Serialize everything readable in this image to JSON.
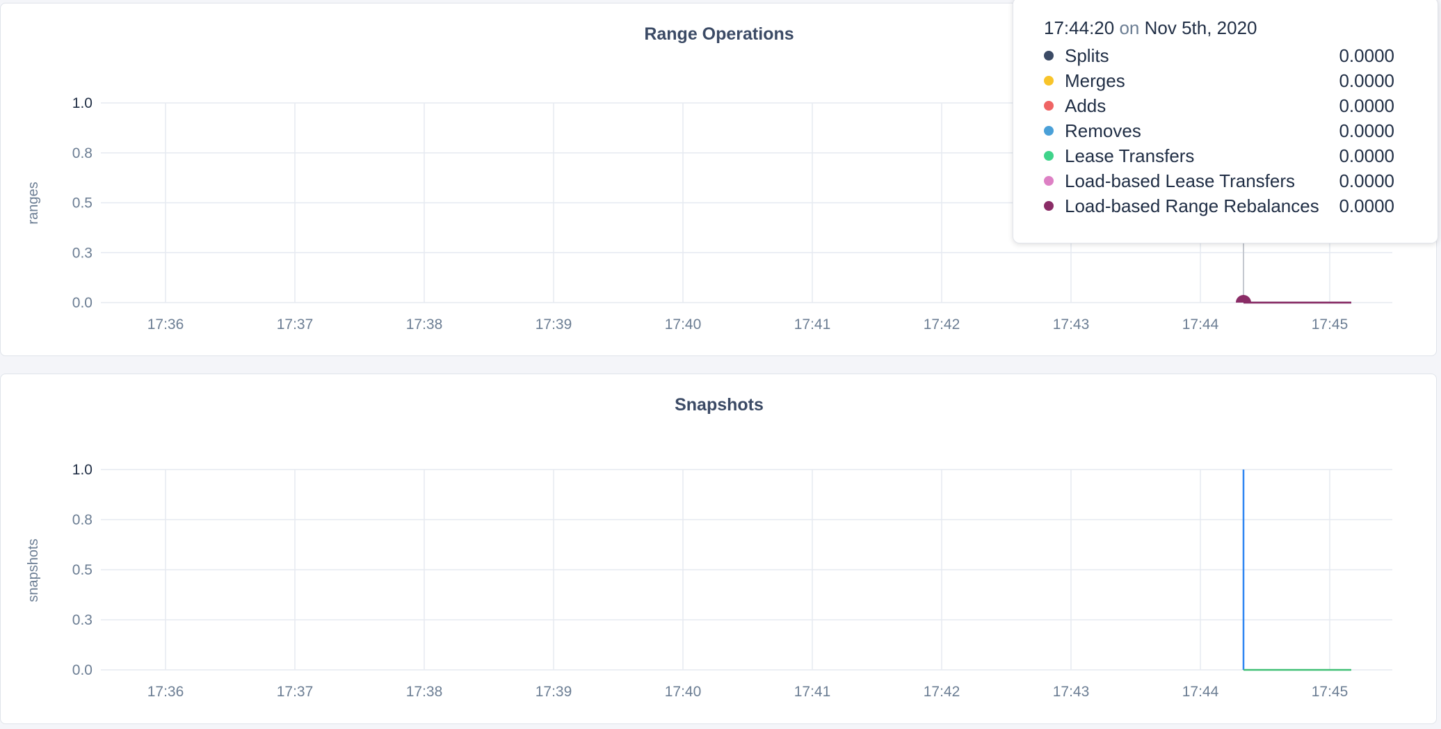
{
  "chart_data": [
    {
      "type": "line",
      "title": "Range Operations",
      "ylabel": "ranges",
      "xlabel": "",
      "ylim": [
        0,
        1
      ],
      "yticks": [
        "0.0",
        "0.3",
        "0.5",
        "0.8",
        "1.0"
      ],
      "xticks": [
        "17:36",
        "17:37",
        "17:38",
        "17:39",
        "17:40",
        "17:41",
        "17:42",
        "17:43",
        "17:44",
        "17:45"
      ],
      "grid": true,
      "series": [
        {
          "name": "Splits",
          "color": "#3b4a65",
          "points": [
            [
              "17:44:20",
              0
            ],
            [
              "17:45:10",
              0
            ]
          ]
        },
        {
          "name": "Merges",
          "color": "#f8c42a",
          "points": [
            [
              "17:44:20",
              0
            ],
            [
              "17:45:10",
              0
            ]
          ]
        },
        {
          "name": "Adds",
          "color": "#ef6464",
          "points": [
            [
              "17:44:20",
              0
            ],
            [
              "17:45:10",
              0
            ]
          ]
        },
        {
          "name": "Removes",
          "color": "#4aa0d8",
          "points": [
            [
              "17:44:20",
              0
            ],
            [
              "17:45:10",
              0
            ]
          ]
        },
        {
          "name": "Lease Transfers",
          "color": "#3fd38a",
          "points": [
            [
              "17:44:20",
              0
            ],
            [
              "17:45:10",
              0
            ]
          ]
        },
        {
          "name": "Load-based Lease Transfers",
          "color": "#dd80c4",
          "points": [
            [
              "17:44:20",
              0
            ],
            [
              "17:45:10",
              0
            ]
          ]
        },
        {
          "name": "Load-based Range Rebalances",
          "color": "#8a2c66",
          "points": [
            [
              "17:44:20",
              0
            ],
            [
              "17:45:10",
              0
            ]
          ]
        }
      ],
      "hover": {
        "time": "17:44:20",
        "on": "on",
        "date": "Nov 5th, 2020",
        "values": [
          "0.0000",
          "0.0000",
          "0.0000",
          "0.0000",
          "0.0000",
          "0.0000",
          "0.0000"
        ]
      }
    },
    {
      "type": "line",
      "title": "Snapshots",
      "ylabel": "snapshots",
      "xlabel": "",
      "ylim": [
        0,
        1
      ],
      "yticks": [
        "0.0",
        "0.3",
        "0.5",
        "0.8",
        "1.0"
      ],
      "xticks": [
        "17:36",
        "17:37",
        "17:38",
        "17:39",
        "17:40",
        "17:41",
        "17:42",
        "17:43",
        "17:44",
        "17:45"
      ],
      "grid": true,
      "series": [
        {
          "color": "#2f86f2",
          "points": [
            [
              "17:44:20",
              1
            ],
            [
              "17:44:20",
              0
            ]
          ]
        },
        {
          "color": "#3fbf75",
          "points": [
            [
              "17:44:20",
              0
            ],
            [
              "17:45:10",
              0
            ]
          ]
        }
      ]
    }
  ]
}
